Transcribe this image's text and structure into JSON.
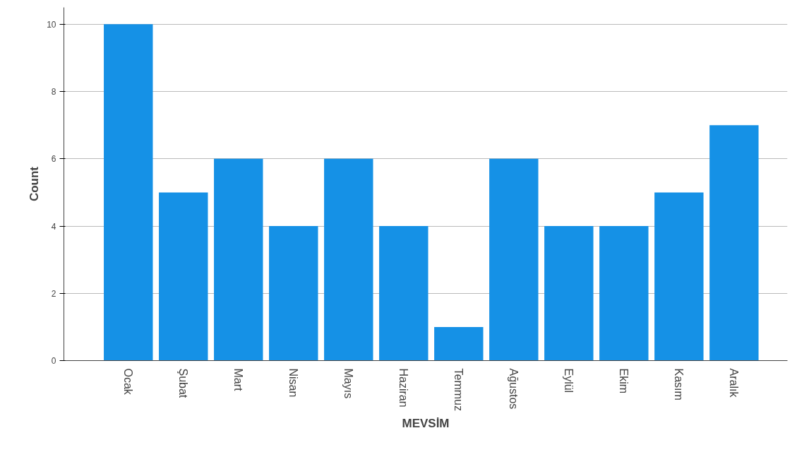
{
  "chart_data": {
    "type": "bar",
    "xlabel": "MEVSİM",
    "ylabel": "Count",
    "categories": [
      "Ocak",
      "Şubat",
      "Mart",
      "Nisan",
      "Mayıs",
      "Haziran",
      "Temmuz",
      "Ağustos",
      "Eylül",
      "Ekim",
      "Kasım",
      "Aralık"
    ],
    "values": [
      10,
      5,
      6,
      4,
      6,
      4,
      1,
      6,
      4,
      4,
      5,
      7
    ],
    "color": "#1591e6",
    "ylim": [
      0,
      10.5
    ],
    "yticks": [
      0,
      2,
      4,
      6,
      8,
      10
    ],
    "grid": "y"
  }
}
